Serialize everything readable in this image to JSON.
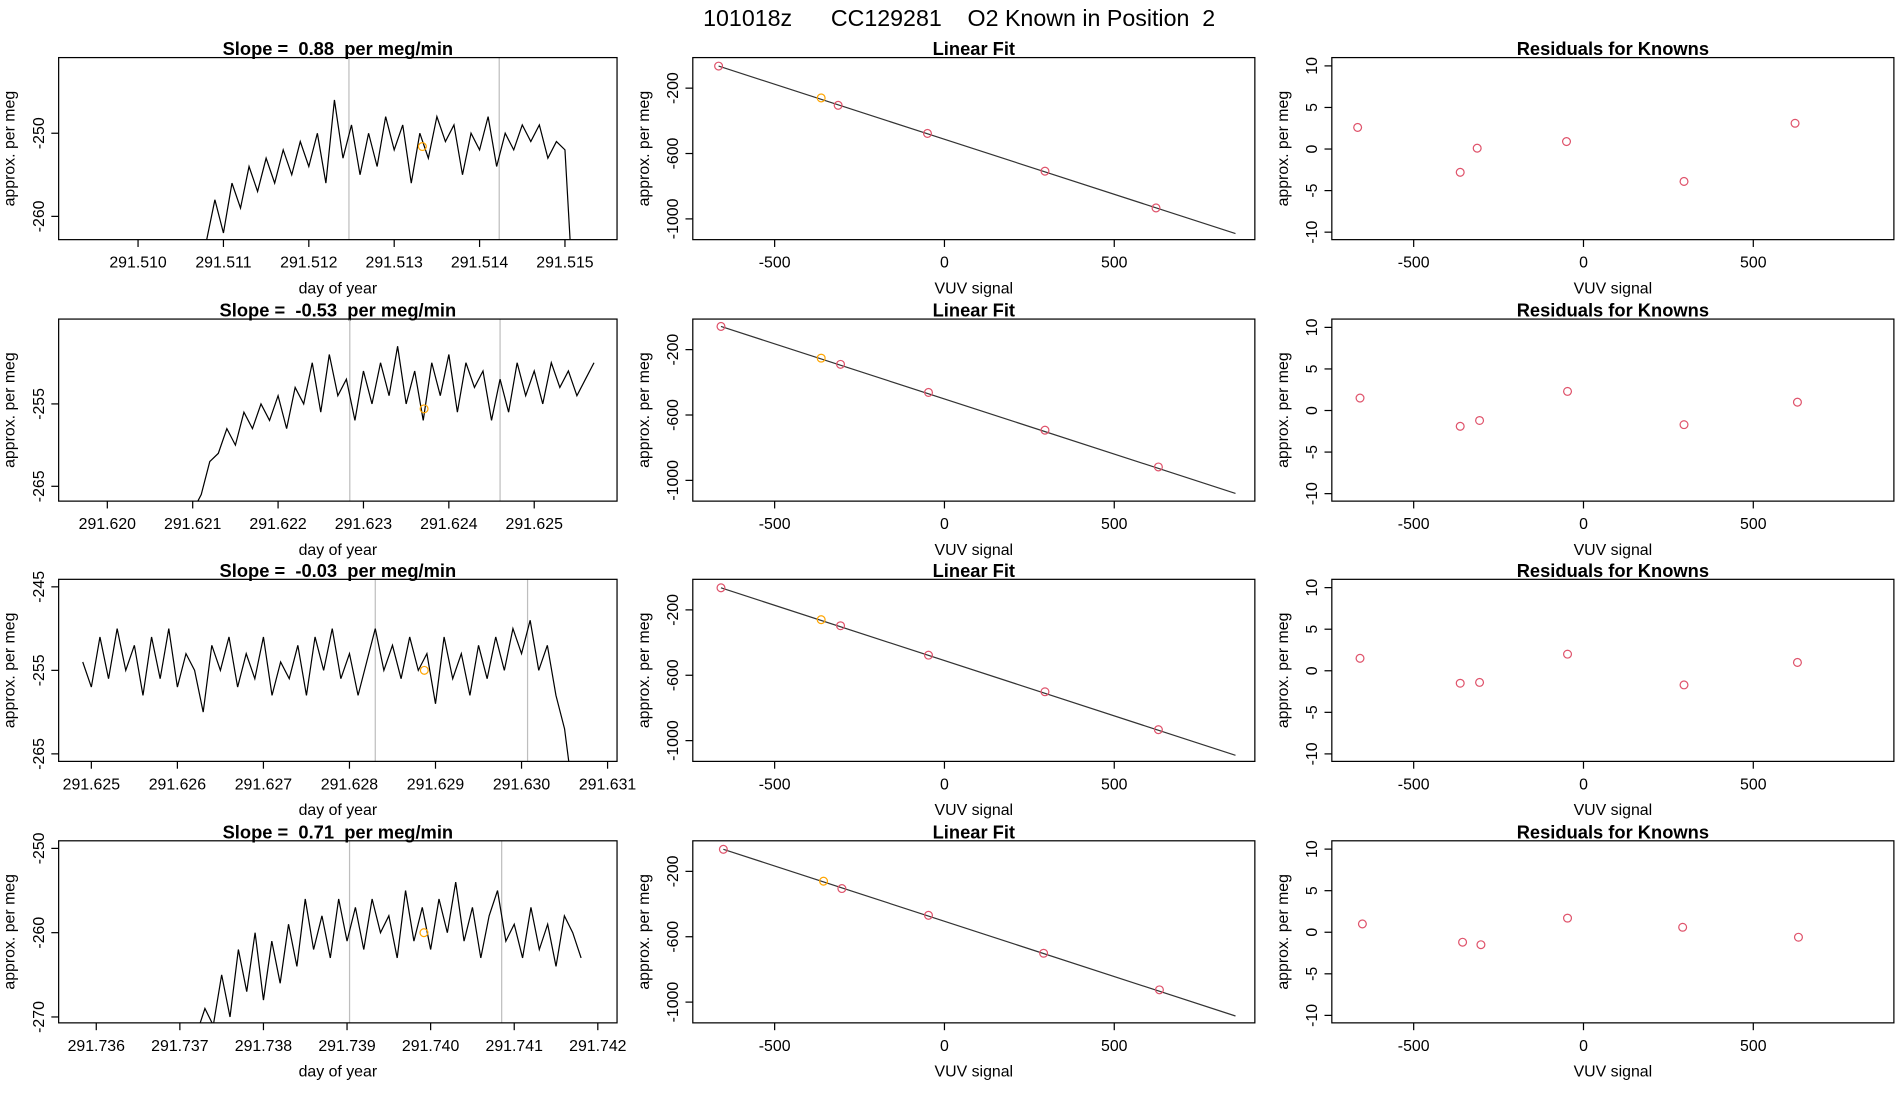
{
  "title": "101018z      CC129281    O2 Known in Position  2",
  "chart_data": [
    {
      "type": "line",
      "title": "Slope =  0.88  per meg/min",
      "xlabel": "day of year",
      "ylabel": "approx. per meg",
      "color": "#000000",
      "x": [
        291.5108,
        291.5109,
        291.511,
        291.5111,
        291.5112,
        291.5113,
        291.5114,
        291.5115,
        291.5116,
        291.5117,
        291.5118,
        291.5119,
        291.512,
        291.5121,
        291.5122,
        291.5123,
        291.5124,
        291.5125,
        291.5126,
        291.5127,
        291.5128,
        291.5129,
        291.513,
        291.5131,
        291.5132,
        291.5133,
        291.5134,
        291.5135,
        291.5136,
        291.5137,
        291.5138,
        291.5139,
        291.514,
        291.5141,
        291.5142,
        291.5143,
        291.5144,
        291.5145,
        291.5146,
        291.5147,
        291.5148,
        291.5149,
        291.515,
        291.5151
      ],
      "values": [
        -263,
        -258,
        -262,
        -256,
        -259,
        -254,
        -257,
        -253,
        -256,
        -252,
        -255,
        -251,
        -254,
        -250,
        -256,
        -246,
        -253,
        -249,
        -255,
        -250,
        -254,
        -248,
        -252,
        -249,
        -256,
        -250,
        -253,
        -248,
        -251,
        -249,
        -255,
        -250,
        -252,
        -248,
        -254,
        -250,
        -252,
        -249,
        -251,
        -249,
        -253,
        -251,
        -252,
        -270
      ],
      "vlines": [
        291.51247,
        291.51423
      ],
      "vline_color": "#bebebe",
      "highlight": {
        "x": 291.51333,
        "y": -251.6,
        "color": "#ffa500"
      },
      "xlim": [
        291.50907,
        291.51561
      ],
      "ylim": [
        -262.8,
        -240.9
      ],
      "xticks": [
        {
          "value": 291.51,
          "label": "291.510"
        },
        291.511,
        291.512,
        291.513,
        291.514,
        291.515
      ],
      "yticks": [
        -260,
        -250
      ]
    },
    {
      "type": "scatter",
      "title": "Linear Fit",
      "xlabel": "VUV signal",
      "ylabel": "approx. per meg",
      "x": [
        -665,
        -363,
        -313,
        -50,
        296,
        623
      ],
      "values": [
        -65,
        -260,
        -305,
        -477,
        -708,
        -933
      ],
      "colors": [
        "#df536b",
        "#ffa500",
        "#df536b",
        "#df536b",
        "#df536b",
        "#df536b"
      ],
      "fit": {
        "x": [
          -665,
          857
        ],
        "y": [
          -65,
          -1090
        ],
        "color": "#333333"
      },
      "xlim": [
        -741,
        914
      ],
      "ylim": [
        -1127,
        -13
      ],
      "xticks": [
        -500,
        0,
        500
      ],
      "yticks": [
        -200,
        -600,
        -1000
      ]
    },
    {
      "type": "scatter",
      "title": "Residuals for Knowns",
      "xlabel": "VUV signal",
      "ylabel": "approx. per meg",
      "x": [
        -665,
        -363,
        -313,
        -50,
        296,
        623
      ],
      "values": [
        2.6,
        -2.8,
        0.1,
        0.9,
        -3.9,
        3.1
      ],
      "colors": [
        "#df536b",
        "#df536b",
        "#df536b",
        "#df536b",
        "#df536b",
        "#df536b"
      ],
      "xlim": [
        -741,
        914
      ],
      "ylim": [
        -10.9,
        11
      ],
      "xticks": [
        -500,
        0,
        500
      ],
      "yticks": [
        -10,
        -5,
        0,
        5,
        10
      ]
    },
    {
      "type": "line",
      "title": "Slope =  -0.53  per meg/min",
      "xlabel": "day of year",
      "ylabel": "approx. per meg",
      "color": "#000000",
      "x": [
        291.621,
        291.6211,
        291.6212,
        291.6213,
        291.6214,
        291.6215,
        291.6216,
        291.6217,
        291.6218,
        291.6219,
        291.622,
        291.6221,
        291.6222,
        291.6223,
        291.6224,
        291.6225,
        291.6226,
        291.6227,
        291.6228,
        291.6229,
        291.623,
        291.6231,
        291.6232,
        291.6233,
        291.6234,
        291.6235,
        291.6236,
        291.6237,
        291.6238,
        291.6239,
        291.624,
        291.6241,
        291.6242,
        291.6243,
        291.6244,
        291.6245,
        291.6246,
        291.6247,
        291.6248,
        291.6249,
        291.625,
        291.6251,
        291.6252,
        291.6253,
        291.6254,
        291.6255,
        291.6256,
        291.6257
      ],
      "values": [
        -268,
        -266,
        -262,
        -261,
        -258,
        -260,
        -256,
        -258,
        -255,
        -257,
        -254,
        -258,
        -253,
        -255,
        -250,
        -256,
        -249,
        -254,
        -252,
        -257,
        -251,
        -255,
        -250,
        -254,
        -248,
        -255,
        -251,
        -257,
        -250,
        -254,
        -249,
        -256,
        -250,
        -253,
        -251,
        -257,
        -252,
        -256,
        -250,
        -254,
        -251,
        -255,
        -250,
        -253,
        -251,
        -254,
        -252,
        -250
      ],
      "vlines": [
        291.62284,
        291.6246
      ],
      "vline_color": "#bebebe",
      "highlight": {
        "x": 291.62371,
        "y": -255.6,
        "color": "#ffa500"
      },
      "xlim": [
        291.61943,
        291.62597
      ],
      "ylim": [
        -266.8,
        -244.7
      ],
      "xticks": [
        {
          "value": 291.62,
          "label": "291.620"
        },
        291.621,
        291.622,
        291.623,
        291.624,
        291.625
      ],
      "yticks": [
        -265,
        -255
      ]
    },
    {
      "type": "scatter",
      "title": "Linear Fit",
      "xlabel": "VUV signal",
      "ylabel": "approx. per meg",
      "x": [
        -658,
        -363,
        -306,
        -47,
        296,
        630
      ],
      "values": [
        -58,
        -252,
        -290,
        -462,
        -693,
        -918
      ],
      "colors": [
        "#df536b",
        "#ffa500",
        "#df536b",
        "#df536b",
        "#df536b",
        "#df536b"
      ],
      "fit": {
        "x": [
          -658,
          857
        ],
        "y": [
          -58,
          -1080
        ],
        "color": "#333333"
      },
      "xlim": [
        -741,
        914
      ],
      "ylim": [
        -1127,
        -13
      ],
      "xticks": [
        -500,
        0,
        500
      ],
      "yticks": [
        -200,
        -600,
        -1000
      ]
    },
    {
      "type": "scatter",
      "title": "Residuals for Knowns",
      "xlabel": "VUV signal",
      "ylabel": "approx. per meg",
      "x": [
        -658,
        -363,
        -306,
        -47,
        296,
        630
      ],
      "values": [
        1.5,
        -1.9,
        -1.2,
        2.3,
        -1.7,
        1.0
      ],
      "colors": [
        "#df536b",
        "#df536b",
        "#df536b",
        "#df536b",
        "#df536b",
        "#df536b"
      ],
      "xlim": [
        -741,
        914
      ],
      "ylim": [
        -10.9,
        11
      ],
      "xticks": [
        -500,
        0,
        500
      ],
      "yticks": [
        -10,
        -5,
        0,
        5,
        10
      ]
    },
    {
      "type": "line",
      "title": "Slope =  -0.03  per meg/min",
      "xlabel": "day of year",
      "ylabel": "approx. per meg",
      "color": "#000000",
      "x": [
        291.6249,
        291.625,
        291.6251,
        291.6252,
        291.6253,
        291.6254,
        291.6255,
        291.6256,
        291.6257,
        291.6258,
        291.6259,
        291.626,
        291.6261,
        291.6262,
        291.6263,
        291.6264,
        291.6265,
        291.6266,
        291.6267,
        291.6268,
        291.6269,
        291.627,
        291.6271,
        291.6272,
        291.6273,
        291.6274,
        291.6275,
        291.6276,
        291.6277,
        291.6278,
        291.6279,
        291.628,
        291.6281,
        291.6282,
        291.6283,
        291.6284,
        291.6285,
        291.6286,
        291.6287,
        291.6288,
        291.6289,
        291.629,
        291.6291,
        291.6292,
        291.6293,
        291.6294,
        291.6295,
        291.6296,
        291.6297,
        291.6298,
        291.6299,
        291.63,
        291.6301,
        291.6302,
        291.6303,
        291.6304,
        291.6305,
        291.6306
      ],
      "values": [
        -254,
        -257,
        -251,
        -256,
        -250,
        -255,
        -252,
        -258,
        -251,
        -256,
        -250,
        -257,
        -253,
        -255,
        -260,
        -252,
        -255,
        -251,
        -257,
        -253,
        -256,
        -251,
        -258,
        -254,
        -256,
        -252,
        -258,
        -251,
        -255,
        -250,
        -256,
        -253,
        -258,
        -254,
        -250,
        -255,
        -252,
        -256,
        -251,
        -255,
        -253,
        -259,
        -251,
        -256,
        -253,
        -258,
        -252,
        -256,
        -251,
        -255,
        -250,
        -253,
        -249,
        -255,
        -252,
        -258,
        -262,
        -270
      ],
      "vlines": [
        291.6283,
        291.63007
      ],
      "vline_color": "#bebebe",
      "highlight": {
        "x": 291.62887,
        "y": -255,
        "color": "#ffa500"
      },
      "xlim": [
        291.62462,
        291.63111
      ],
      "ylim": [
        -265.9,
        -244.1
      ],
      "xticks": [
        291.625,
        291.626,
        291.627,
        291.628,
        291.629,
        {
          "value": 291.63,
          "label": "291.630"
        },
        291.631
      ],
      "yticks": [
        -265,
        -255,
        -245
      ]
    },
    {
      "type": "scatter",
      "title": "Linear Fit",
      "xlabel": "VUV signal",
      "ylabel": "approx. per meg",
      "x": [
        -658,
        -363,
        -306,
        -47,
        296,
        630
      ],
      "values": [
        -65,
        -260,
        -297,
        -477,
        -701,
        -933
      ],
      "colors": [
        "#df536b",
        "#ffa500",
        "#df536b",
        "#df536b",
        "#df536b",
        "#df536b"
      ],
      "fit": {
        "x": [
          -658,
          857
        ],
        "y": [
          -65,
          -1090
        ],
        "color": "#333333"
      },
      "xlim": [
        -741,
        914
      ],
      "ylim": [
        -1127,
        -13
      ],
      "xticks": [
        -500,
        0,
        500
      ],
      "yticks": [
        -200,
        -600,
        -1000
      ]
    },
    {
      "type": "scatter",
      "title": "Residuals for Knowns",
      "xlabel": "VUV signal",
      "ylabel": "approx. per meg",
      "x": [
        -658,
        -363,
        -306,
        -47,
        296,
        630
      ],
      "values": [
        1.5,
        -1.5,
        -1.4,
        2.0,
        -1.7,
        1.0
      ],
      "colors": [
        "#df536b",
        "#df536b",
        "#df536b",
        "#df536b",
        "#df536b",
        "#df536b"
      ],
      "xlim": [
        -741,
        914
      ],
      "ylim": [
        -10.9,
        11
      ],
      "xticks": [
        -500,
        0,
        500
      ],
      "yticks": [
        -10,
        -5,
        0,
        5,
        10
      ]
    },
    {
      "type": "line",
      "title": "Slope =  0.71  per meg/min",
      "xlabel": "day of year",
      "ylabel": "approx. per meg",
      "color": "#000000",
      "x": [
        291.7372,
        291.7373,
        291.7374,
        291.7375,
        291.7376,
        291.7377,
        291.7378,
        291.7379,
        291.738,
        291.7381,
        291.7382,
        291.7383,
        291.7384,
        291.7385,
        291.7386,
        291.7387,
        291.7388,
        291.7389,
        291.739,
        291.7391,
        291.7392,
        291.7393,
        291.7394,
        291.7395,
        291.7396,
        291.7397,
        291.7398,
        291.7399,
        291.74,
        291.7401,
        291.7402,
        291.7403,
        291.7404,
        291.7405,
        291.7406,
        291.7407,
        291.7408,
        291.7409,
        291.741,
        291.7411,
        291.7412,
        291.7413,
        291.7414,
        291.7415,
        291.7416,
        291.7417,
        291.7418
      ],
      "values": [
        -272,
        -269,
        -271,
        -265,
        -270,
        -262,
        -267,
        -260,
        -268,
        -261,
        -266,
        -259,
        -264,
        -256,
        -262,
        -258,
        -263,
        -256,
        -261,
        -257,
        -262,
        -256,
        -260,
        -258,
        -263,
        -255,
        -261,
        -257,
        -262,
        -256,
        -260,
        -254,
        -261,
        -257,
        -263,
        -258,
        -255,
        -261,
        -259,
        -263,
        -257,
        -262,
        -259,
        -264,
        -258,
        -260,
        -263
      ],
      "vlines": [
        291.73903,
        291.74085
      ],
      "vline_color": "#bebebe",
      "highlight": {
        "x": 291.73992,
        "y": -260,
        "color": "#ffa500"
      },
      "xlim": [
        291.73555,
        291.74223
      ],
      "ylim": [
        -270.7,
        -249.1
      ],
      "xticks": [
        291.736,
        291.737,
        291.738,
        291.739,
        {
          "value": 291.74,
          "label": "291.740"
        },
        291.741,
        291.742
      ],
      "yticks": [
        -270,
        -260,
        -250
      ]
    },
    {
      "type": "scatter",
      "title": "Linear Fit",
      "xlabel": "VUV signal",
      "ylabel": "approx. per meg",
      "x": [
        -651,
        -356,
        -302,
        -47,
        292,
        633
      ],
      "values": [
        -65,
        -260,
        -305,
        -469,
        -701,
        -925
      ],
      "colors": [
        "#df536b",
        "#ffa500",
        "#df536b",
        "#df536b",
        "#df536b",
        "#df536b"
      ],
      "fit": {
        "x": [
          -651,
          857
        ],
        "y": [
          -65,
          -1085
        ],
        "color": "#333333"
      },
      "xlim": [
        -741,
        914
      ],
      "ylim": [
        -1127,
        -13
      ],
      "xticks": [
        -500,
        0,
        500
      ],
      "yticks": [
        -200,
        -600,
        -1000
      ]
    },
    {
      "type": "scatter",
      "title": "Residuals for Knowns",
      "xlabel": "VUV signal",
      "ylabel": "approx. per meg",
      "x": [
        -651,
        -356,
        -302,
        -47,
        292,
        633
      ],
      "values": [
        1.0,
        -1.2,
        -1.5,
        1.7,
        0.6,
        -0.6
      ],
      "colors": [
        "#df536b",
        "#df536b",
        "#df536b",
        "#df536b",
        "#df536b",
        "#df536b"
      ],
      "xlim": [
        -741,
        914
      ],
      "ylim": [
        -10.9,
        11
      ],
      "xticks": [
        -500,
        0,
        500
      ],
      "yticks": [
        -10,
        -5,
        0,
        5,
        10
      ]
    }
  ]
}
